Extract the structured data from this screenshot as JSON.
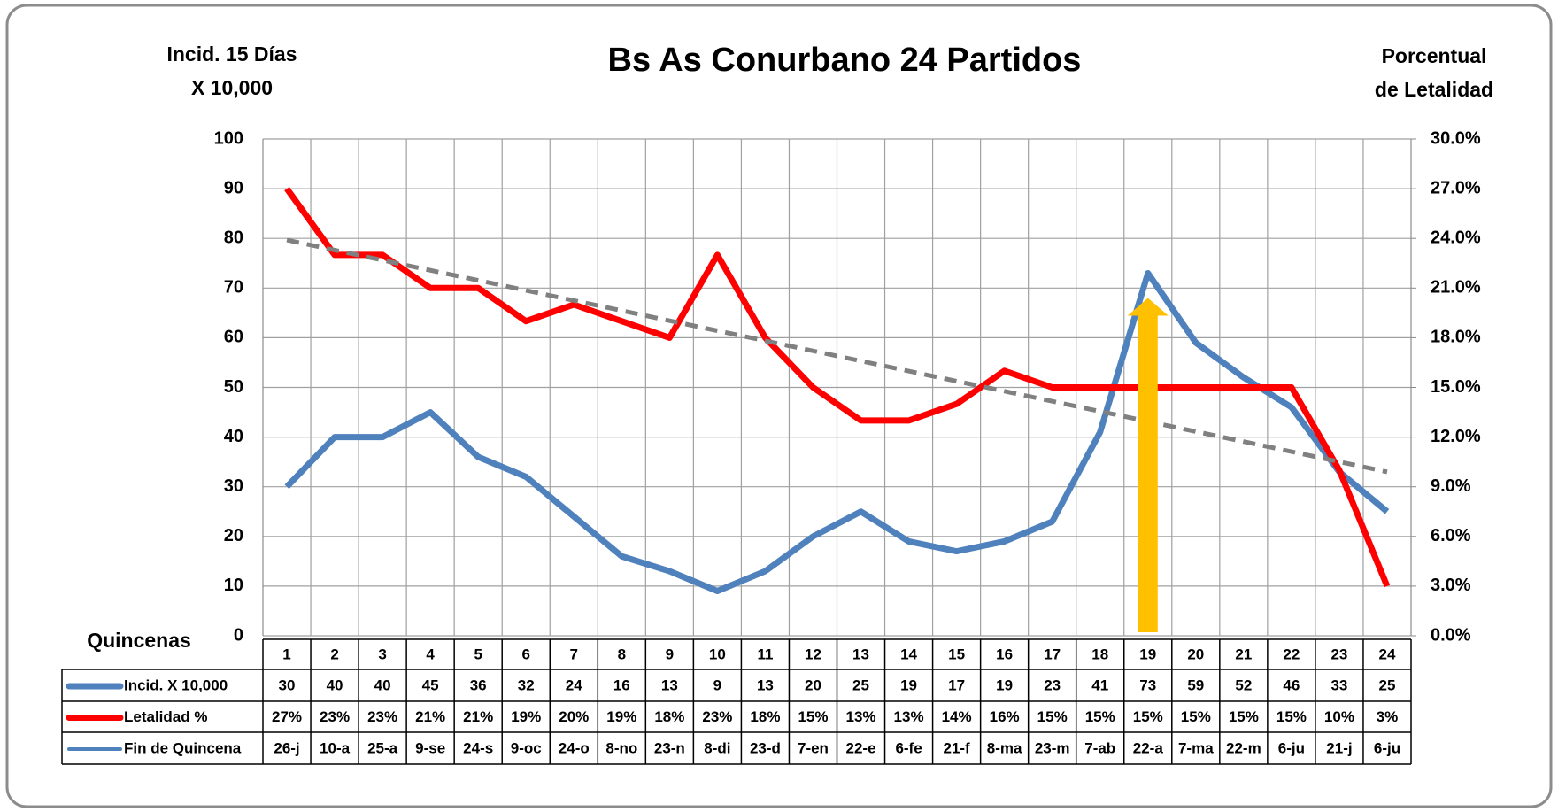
{
  "chart_data": {
    "type": "line",
    "title": "Bs As Conurbano 24 Partidos",
    "y_title": [
      "Incid. 15 Días",
      "X 10,000"
    ],
    "y2_title": [
      "Porcentual",
      "de Letalidad"
    ],
    "x_label": "Quincenas",
    "categories": [
      "1",
      "2",
      "3",
      "4",
      "5",
      "6",
      "7",
      "8",
      "9",
      "10",
      "11",
      "12",
      "13",
      "14",
      "15",
      "16",
      "17",
      "18",
      "19",
      "20",
      "21",
      "22",
      "23",
      "24"
    ],
    "series": [
      {
        "name": "Incid. X 10,000",
        "color": "#4f81bd",
        "values": [
          30,
          40,
          40,
          45,
          36,
          32,
          24,
          16,
          13,
          9,
          13,
          20,
          25,
          19,
          17,
          19,
          23,
          41,
          73,
          59,
          52,
          46,
          33,
          25
        ]
      },
      {
        "name": "Letalidad %",
        "color": "#ff0000",
        "axis": "y2",
        "values": [
          27,
          23,
          23,
          21,
          21,
          19,
          20,
          19,
          18,
          23,
          18,
          15,
          13,
          13,
          14,
          16,
          15,
          15,
          15,
          15,
          15,
          15,
          10,
          3
        ],
        "value_labels": [
          "27%",
          "23%",
          "23%",
          "21%",
          "21%",
          "19%",
          "20%",
          "19%",
          "18%",
          "23%",
          "18%",
          "15%",
          "13%",
          "13%",
          "14%",
          "16%",
          "15%",
          "15%",
          "15%",
          "15%",
          "15%",
          "15%",
          "10%",
          "3%"
        ]
      }
    ],
    "end_dates": {
      "name": "Fin de Quincena",
      "color": "#4f81bd",
      "labels": [
        "26-j",
        "10-a",
        "25-a",
        "9-se",
        "24-s",
        "9-oc",
        "24-o",
        "8-no",
        "23-n",
        "8-di",
        "23-d",
        "7-en",
        "22-e",
        "6-fe",
        "21-f",
        "8-ma",
        "23-m",
        "7-ab",
        "22-a",
        "7-ma",
        "22-m",
        "6-ju",
        "21-j",
        "6-ju"
      ]
    },
    "trend_line": {
      "axis": "y2",
      "start": 23.9,
      "end": 9.9,
      "color": "#808080"
    },
    "arrow": {
      "from": 0,
      "to": 68,
      "color": "#ffc000"
    },
    "ylim": [
      0,
      100
    ],
    "yticks": [
      0,
      10,
      20,
      30,
      40,
      50,
      60,
      70,
      80,
      90,
      100
    ],
    "y2lim": [
      0,
      30
    ],
    "y2ticks": [
      {
        "value": 0,
        "label": "0.0%"
      },
      {
        "value": 3,
        "label": "3.0%"
      },
      {
        "value": 6,
        "label": "6.0%"
      },
      {
        "value": 9,
        "label": "9.0%"
      },
      {
        "value": 12,
        "label": "12.0%"
      },
      {
        "value": 15,
        "label": "15.0%"
      },
      {
        "value": 18,
        "label": "18.0%"
      },
      {
        "value": 21,
        "label": "21.0%"
      },
      {
        "value": 24,
        "label": "24.0%"
      },
      {
        "value": 27,
        "label": "27.0%"
      },
      {
        "value": 30,
        "label": "30.0%"
      }
    ],
    "grid": true
  }
}
